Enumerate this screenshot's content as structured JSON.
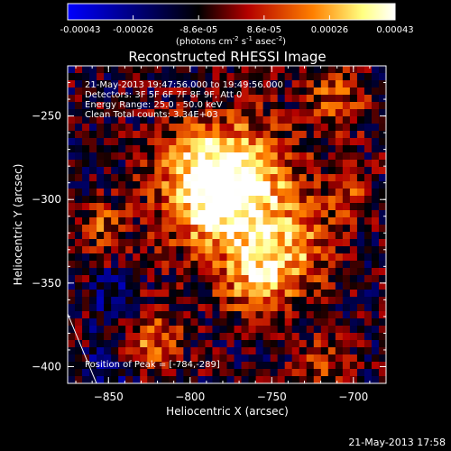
{
  "colorbar": {
    "ticks": [
      "-0.00043",
      "-0.00026",
      "-8.6e-05",
      "8.6e-05",
      "0.00026",
      "0.00043"
    ],
    "units_main": "(photons cm",
    "units_sup1": "-2",
    "units_mid1": " s",
    "units_sup2": "-1",
    "units_mid2": " asec",
    "units_sup3": "-2",
    "units_end": ")",
    "range": [
      -0.00043,
      0.00043
    ],
    "colors": [
      "#0000ff",
      "#000000",
      "#b40000",
      "#ff8000",
      "#ffff80",
      "#ffffff"
    ]
  },
  "chart_data": {
    "type": "heatmap",
    "title": "Reconstructed RHESSI Image",
    "xlabel": "Heliocentric X (arcsec)",
    "ylabel": "Heliocentric Y (arcsec)",
    "xlim": [
      -875,
      -680
    ],
    "ylim": [
      -410,
      -220
    ],
    "xticks": [
      -850,
      -800,
      -750,
      -700
    ],
    "yticks": [
      -400,
      -350,
      -300,
      -250
    ],
    "xtick_labels": [
      "−850",
      "−800",
      "−750",
      "−700"
    ],
    "ytick_labels": [
      "−400",
      "−350",
      "−300",
      "−250"
    ],
    "peak": [
      -784,
      -289
    ],
    "annotations": [
      "21-May-2013 19:47:56.000 to 19:49:56.000",
      "Detectors: 3F 5F 6F 7F 8F 9F, Att 0",
      "Energy Range: 25.0 - 50.0 keV",
      "Clean    Total counts: 3.34E+03"
    ],
    "peak_label": "Position of Peak = [-784,-289]",
    "grid": false
  },
  "footer_timestamp": "21-May-2013 17:58"
}
